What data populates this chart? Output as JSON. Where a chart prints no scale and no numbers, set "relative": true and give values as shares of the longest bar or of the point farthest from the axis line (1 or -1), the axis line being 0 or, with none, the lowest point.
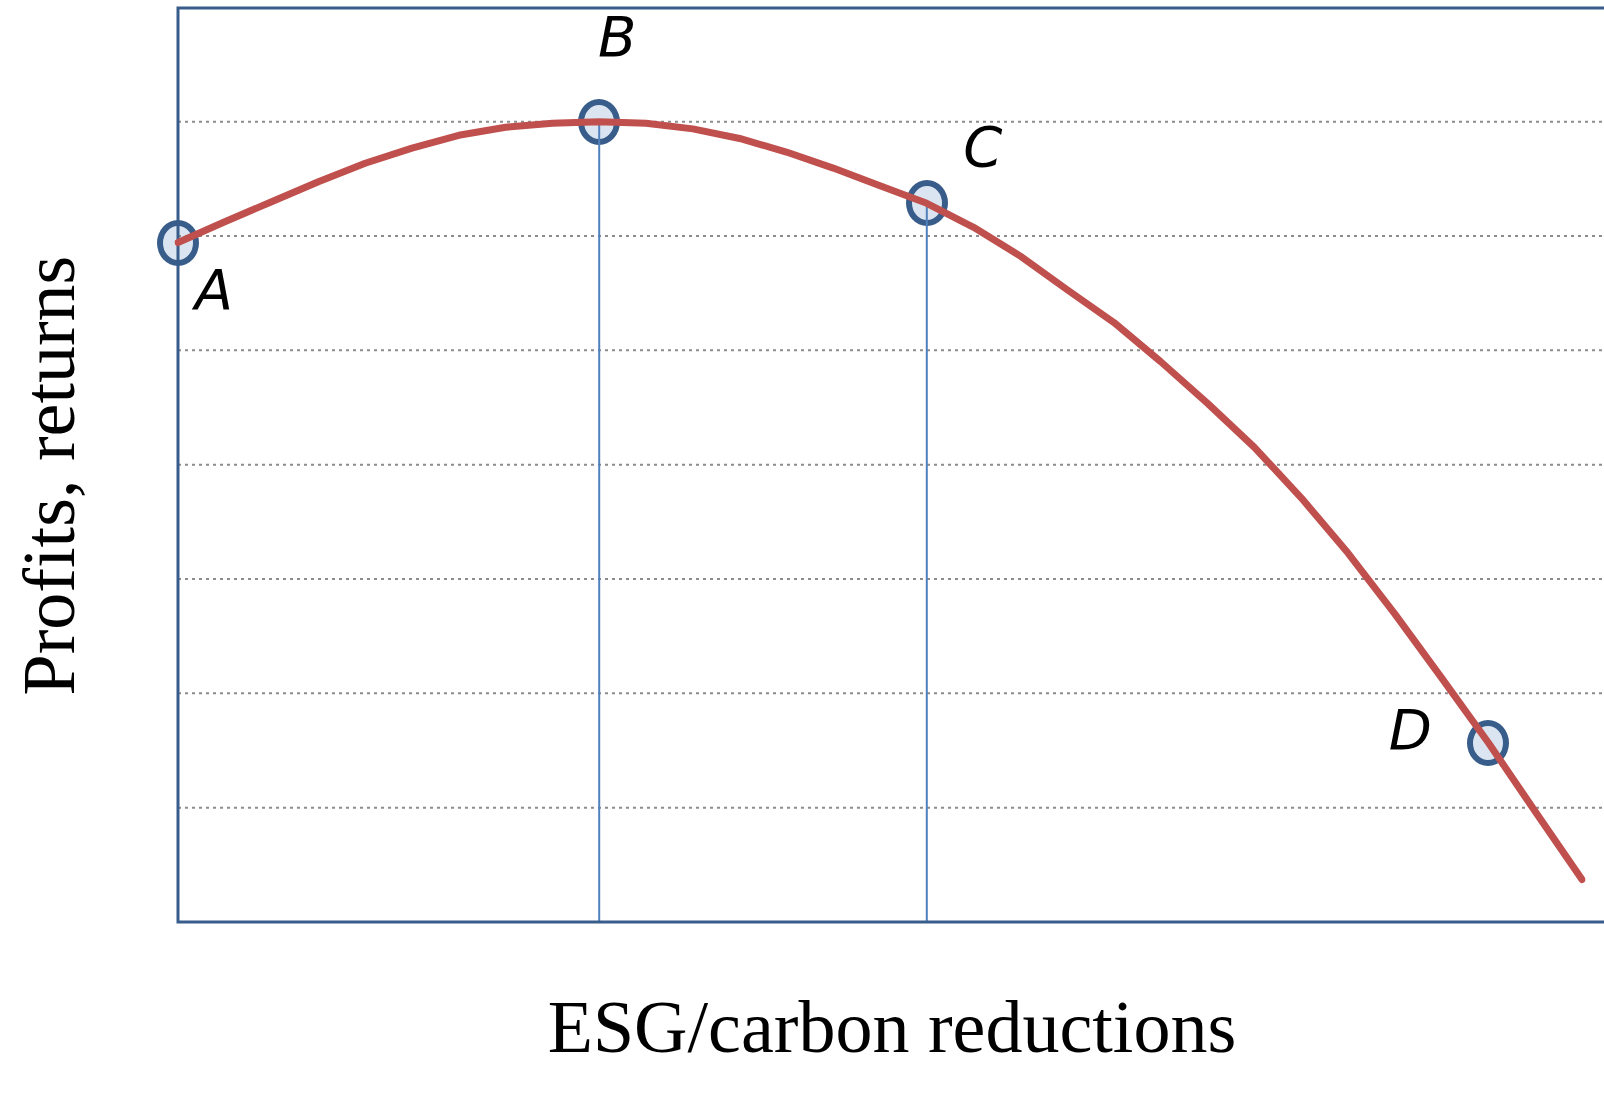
{
  "chart_data": {
    "type": "line",
    "relative": true,
    "xlabel": "ESG/carbon reductions",
    "ylabel": "Profits, returns",
    "legend": false,
    "grid": "y",
    "categories": [
      null,
      null,
      null,
      null,
      null,
      null,
      null,
      null,
      null,
      null,
      null,
      null,
      null,
      null,
      null,
      null,
      null,
      null,
      null,
      null,
      null,
      null,
      null,
      null,
      null,
      null,
      null,
      null,
      null,
      null,
      null
    ],
    "series": [
      {
        "color": "#c0504d",
        "values": [
          0.849,
          0.875,
          0.9,
          0.925,
          0.948,
          0.967,
          0.983,
          0.993,
          0.998,
          1.0,
          0.998,
          0.991,
          0.979,
          0.962,
          0.942,
          0.92,
          0.898,
          0.868,
          0.832,
          0.79,
          0.749,
          0.7,
          0.648,
          0.593,
          0.53,
          0.461,
          0.385,
          0.305,
          0.224,
          0.138,
          0.053
        ]
      }
    ],
    "annotations": [
      "A",
      "B",
      "C",
      "D"
    ]
  }
}
